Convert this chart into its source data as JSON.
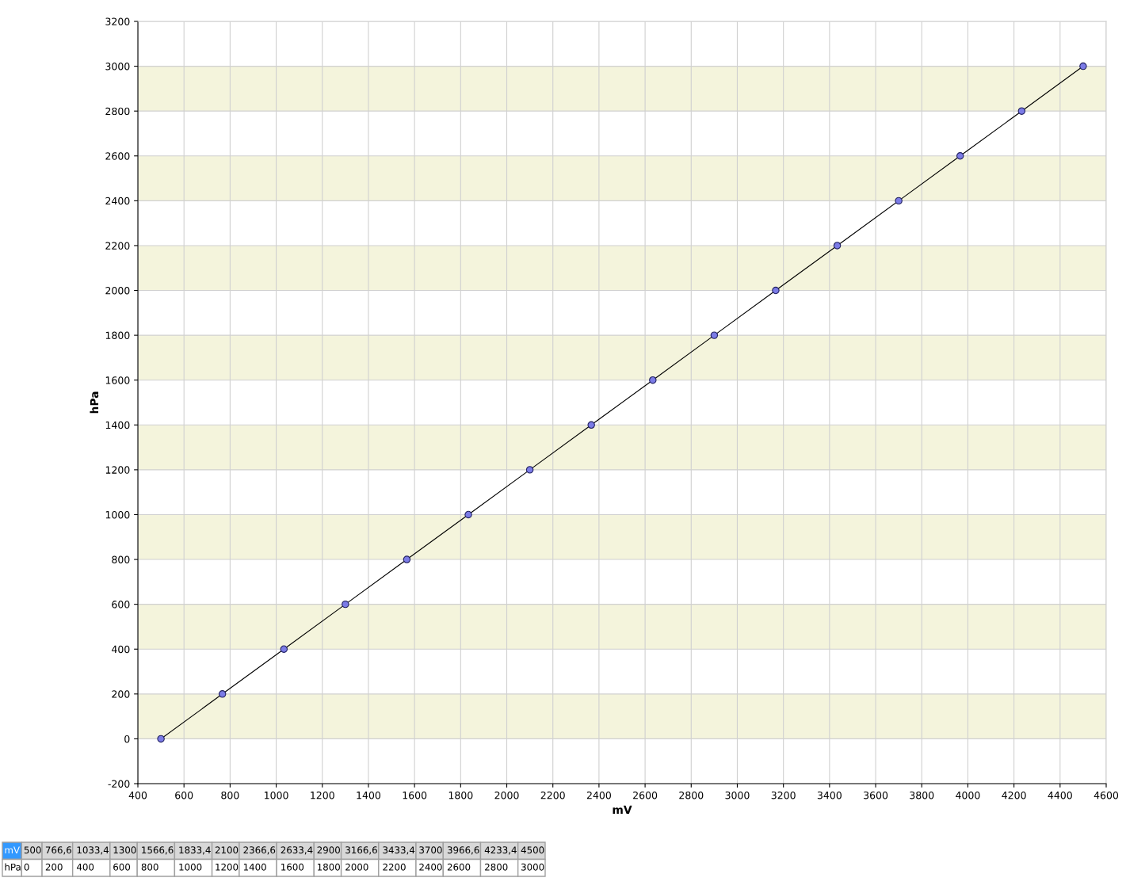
{
  "chart_data": {
    "type": "line",
    "xlabel": "mV",
    "ylabel": "hPa",
    "x": [
      500,
      766.6,
      1033.4,
      1300,
      1566.6,
      1833.4,
      2100,
      2366.6,
      2633.4,
      2900,
      3166.6,
      3433.4,
      3700,
      3966.6,
      4233.4,
      4500
    ],
    "series": [
      {
        "color": "#7b7be6",
        "values": [
          0,
          200,
          400,
          600,
          800,
          1000,
          1200,
          1400,
          1600,
          1800,
          2000,
          2200,
          2400,
          2600,
          2800,
          3000
        ]
      }
    ],
    "xlim": [
      400,
      4600
    ],
    "xticks": [
      400,
      600,
      800,
      1000,
      1200,
      1400,
      1600,
      1800,
      2000,
      2200,
      2400,
      2600,
      2800,
      3000,
      3200,
      3400,
      3600,
      3800,
      4000,
      4200,
      4400,
      4600
    ],
    "ylim": [
      -200,
      3200
    ],
    "yticks": [
      -200,
      0,
      200,
      400,
      600,
      800,
      1000,
      1200,
      1400,
      1600,
      1800,
      2000,
      2200,
      2400,
      2600,
      2800,
      3000,
      3200
    ],
    "bands": [
      {
        "axis": "y",
        "from": 0,
        "to": 200,
        "color": "#f4f4dc"
      },
      {
        "axis": "y",
        "from": 400,
        "to": 600,
        "color": "#f4f4dc"
      },
      {
        "axis": "y",
        "from": 800,
        "to": 1000,
        "color": "#f4f4dc"
      },
      {
        "axis": "y",
        "from": 1200,
        "to": 1400,
        "color": "#f4f4dc"
      },
      {
        "axis": "y",
        "from": 1600,
        "to": 1800,
        "color": "#f4f4dc"
      },
      {
        "axis": "y",
        "from": 2000,
        "to": 2200,
        "color": "#f4f4dc"
      },
      {
        "axis": "y",
        "from": 2400,
        "to": 2600,
        "color": "#f4f4dc"
      },
      {
        "axis": "y",
        "from": 2800,
        "to": 3000,
        "color": "#f4f4dc"
      }
    ],
    "annotations": [
      "mV",
      "500",
      "766,6",
      "1033,4",
      "1300",
      "1566,6",
      "1833,4",
      "2100",
      "2366,6",
      "2633,4",
      "2900",
      "3166,6",
      "3433,4",
      "3700",
      "3966,6",
      "4233,4",
      "4500",
      "hPa",
      "0",
      "200",
      "400",
      "600",
      "800",
      "1000",
      "1200",
      "1400",
      "1600",
      "1800",
      "2000",
      "2200",
      "2400",
      "2600",
      "2800",
      "3000"
    ],
    "grid": true,
    "marker": "circle",
    "line_style": "solid"
  }
}
